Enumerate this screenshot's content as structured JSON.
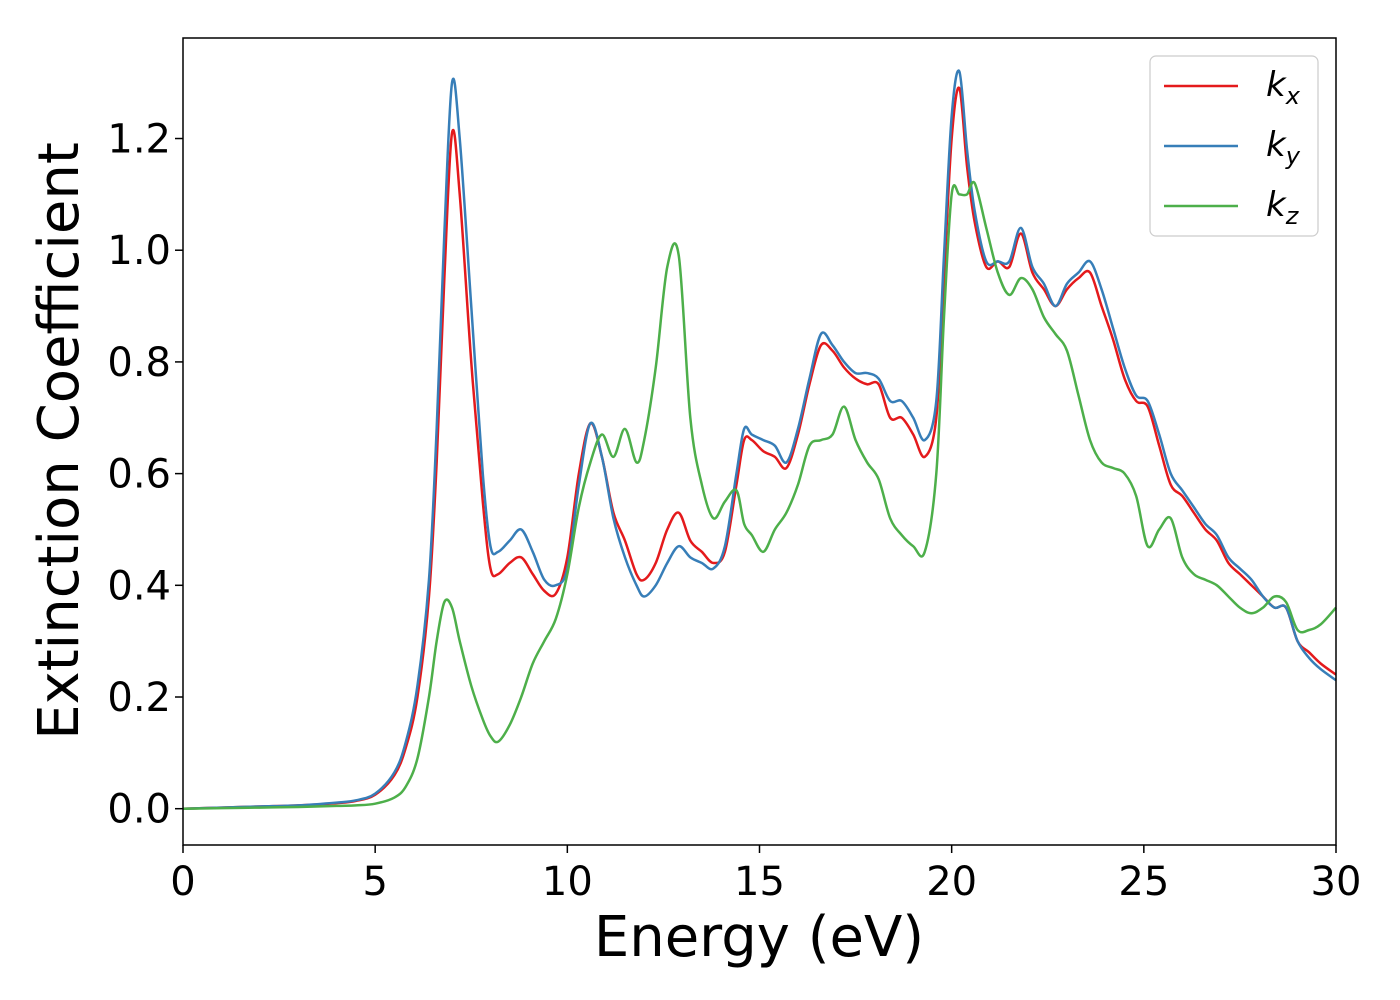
{
  "chart_data": {
    "type": "line",
    "title": "",
    "xlabel": "Energy (eV)",
    "ylabel": "Extinction Coefficient",
    "xlim": [
      0,
      30
    ],
    "ylim": [
      -0.065,
      1.38
    ],
    "xticks": [
      0,
      5,
      10,
      15,
      20,
      25,
      30
    ],
    "xtick_labels": [
      "0",
      "5",
      "10",
      "15",
      "20",
      "25",
      "30"
    ],
    "yticks": [
      0.0,
      0.2,
      0.4,
      0.6,
      0.8,
      1.0,
      1.2
    ],
    "ytick_labels": [
      "0.0",
      "0.2",
      "0.4",
      "0.6",
      "0.8",
      "1.0",
      "1.2"
    ],
    "grid": false,
    "legend_position": "top-right",
    "series": [
      {
        "name": "k_x",
        "label_main": "k",
        "label_sub": "x",
        "color": "#e41a1c",
        "x": [
          0,
          1,
          2,
          3,
          4,
          4.5,
          5,
          5.5,
          5.8,
          6.1,
          6.4,
          6.6,
          6.8,
          7.0,
          7.2,
          7.5,
          7.8,
          8.0,
          8.2,
          8.5,
          8.8,
          9.1,
          9.4,
          9.7,
          10.0,
          10.3,
          10.6,
          10.9,
          11.2,
          11.5,
          11.8,
          12.0,
          12.3,
          12.6,
          12.9,
          13.2,
          13.5,
          13.8,
          14.1,
          14.4,
          14.6,
          14.8,
          15.1,
          15.4,
          15.7,
          16.0,
          16.3,
          16.6,
          16.9,
          17.2,
          17.5,
          17.8,
          18.1,
          18.4,
          18.7,
          19.0,
          19.3,
          19.6,
          19.8,
          20.0,
          20.2,
          20.4,
          20.6,
          20.9,
          21.2,
          21.5,
          21.8,
          22.1,
          22.4,
          22.7,
          23.0,
          23.3,
          23.6,
          23.9,
          24.2,
          24.5,
          24.8,
          25.1,
          25.4,
          25.7,
          26.0,
          26.3,
          26.6,
          26.9,
          27.2,
          27.5,
          27.8,
          28.1,
          28.4,
          28.7,
          29.0,
          29.3,
          29.6,
          30.0
        ],
        "y": [
          0.0,
          0.002,
          0.004,
          0.006,
          0.01,
          0.014,
          0.025,
          0.06,
          0.11,
          0.2,
          0.38,
          0.62,
          0.95,
          1.21,
          1.1,
          0.8,
          0.55,
          0.43,
          0.42,
          0.44,
          0.45,
          0.42,
          0.39,
          0.385,
          0.45,
          0.6,
          0.69,
          0.63,
          0.53,
          0.48,
          0.42,
          0.41,
          0.44,
          0.5,
          0.53,
          0.48,
          0.46,
          0.44,
          0.46,
          0.58,
          0.66,
          0.66,
          0.64,
          0.63,
          0.61,
          0.67,
          0.76,
          0.83,
          0.82,
          0.79,
          0.77,
          0.76,
          0.76,
          0.7,
          0.7,
          0.67,
          0.63,
          0.7,
          0.95,
          1.2,
          1.29,
          1.15,
          1.05,
          0.97,
          0.98,
          0.97,
          1.03,
          0.96,
          0.93,
          0.9,
          0.93,
          0.95,
          0.96,
          0.9,
          0.84,
          0.77,
          0.73,
          0.72,
          0.65,
          0.58,
          0.56,
          0.53,
          0.5,
          0.48,
          0.44,
          0.42,
          0.4,
          0.38,
          0.36,
          0.36,
          0.3,
          0.28,
          0.26,
          0.24
        ]
      },
      {
        "name": "k_y",
        "label_main": "k",
        "label_sub": "y",
        "color": "#377eb8",
        "x": [
          0,
          1,
          2,
          3,
          4,
          4.5,
          5,
          5.5,
          5.8,
          6.1,
          6.4,
          6.6,
          6.8,
          7.0,
          7.2,
          7.5,
          7.8,
          8.0,
          8.2,
          8.5,
          8.8,
          9.1,
          9.4,
          9.7,
          10.0,
          10.3,
          10.6,
          10.9,
          11.2,
          11.5,
          11.8,
          12.0,
          12.3,
          12.6,
          12.9,
          13.2,
          13.5,
          13.8,
          14.1,
          14.4,
          14.6,
          14.8,
          15.1,
          15.4,
          15.7,
          16.0,
          16.3,
          16.6,
          16.9,
          17.2,
          17.5,
          17.8,
          18.1,
          18.4,
          18.7,
          19.0,
          19.3,
          19.6,
          19.8,
          20.0,
          20.2,
          20.4,
          20.6,
          20.9,
          21.2,
          21.5,
          21.8,
          22.1,
          22.4,
          22.7,
          23.0,
          23.3,
          23.6,
          23.9,
          24.2,
          24.5,
          24.8,
          25.1,
          25.4,
          25.7,
          26.0,
          26.3,
          26.6,
          26.9,
          27.2,
          27.5,
          27.8,
          28.1,
          28.4,
          28.7,
          29.0,
          29.3,
          29.6,
          30.0
        ],
        "y": [
          0.0,
          0.002,
          0.004,
          0.006,
          0.011,
          0.015,
          0.027,
          0.065,
          0.12,
          0.22,
          0.41,
          0.68,
          1.03,
          1.3,
          1.2,
          0.9,
          0.6,
          0.47,
          0.46,
          0.48,
          0.5,
          0.46,
          0.41,
          0.4,
          0.43,
          0.58,
          0.69,
          0.63,
          0.52,
          0.45,
          0.4,
          0.38,
          0.4,
          0.44,
          0.47,
          0.45,
          0.44,
          0.43,
          0.47,
          0.6,
          0.68,
          0.67,
          0.66,
          0.65,
          0.62,
          0.68,
          0.77,
          0.85,
          0.83,
          0.8,
          0.78,
          0.78,
          0.77,
          0.73,
          0.73,
          0.7,
          0.66,
          0.73,
          0.99,
          1.24,
          1.32,
          1.18,
          1.07,
          0.98,
          0.98,
          0.98,
          1.04,
          0.97,
          0.94,
          0.9,
          0.94,
          0.96,
          0.98,
          0.93,
          0.86,
          0.79,
          0.74,
          0.73,
          0.67,
          0.6,
          0.57,
          0.54,
          0.51,
          0.49,
          0.45,
          0.43,
          0.41,
          0.38,
          0.36,
          0.36,
          0.3,
          0.27,
          0.25,
          0.23
        ]
      },
      {
        "name": "k_z",
        "label_main": "k",
        "label_sub": "z",
        "color": "#4daf4a",
        "x": [
          0,
          1,
          2,
          3,
          4,
          4.5,
          5,
          5.5,
          5.8,
          6.1,
          6.4,
          6.6,
          6.8,
          7.0,
          7.2,
          7.5,
          7.8,
          8.0,
          8.2,
          8.5,
          8.8,
          9.1,
          9.4,
          9.7,
          10.0,
          10.3,
          10.6,
          10.9,
          11.2,
          11.5,
          11.8,
          12.0,
          12.3,
          12.6,
          12.9,
          13.2,
          13.5,
          13.8,
          14.1,
          14.4,
          14.6,
          14.8,
          15.1,
          15.4,
          15.7,
          16.0,
          16.3,
          16.6,
          16.9,
          17.2,
          17.5,
          17.8,
          18.1,
          18.4,
          18.7,
          19.0,
          19.3,
          19.6,
          19.8,
          20.0,
          20.2,
          20.4,
          20.6,
          20.9,
          21.2,
          21.5,
          21.8,
          22.1,
          22.4,
          22.7,
          23.0,
          23.3,
          23.6,
          23.9,
          24.2,
          24.5,
          24.8,
          25.1,
          25.4,
          25.7,
          26.0,
          26.3,
          26.6,
          26.9,
          27.2,
          27.5,
          27.8,
          28.1,
          28.4,
          28.7,
          29.0,
          29.3,
          29.6,
          30.0
        ],
        "y": [
          0.0,
          0.001,
          0.002,
          0.003,
          0.005,
          0.006,
          0.009,
          0.02,
          0.04,
          0.09,
          0.2,
          0.3,
          0.37,
          0.36,
          0.3,
          0.22,
          0.16,
          0.13,
          0.12,
          0.15,
          0.2,
          0.26,
          0.3,
          0.34,
          0.42,
          0.54,
          0.62,
          0.67,
          0.63,
          0.68,
          0.62,
          0.66,
          0.79,
          0.97,
          0.99,
          0.7,
          0.58,
          0.52,
          0.55,
          0.57,
          0.51,
          0.49,
          0.46,
          0.5,
          0.53,
          0.58,
          0.65,
          0.66,
          0.67,
          0.72,
          0.66,
          0.62,
          0.59,
          0.52,
          0.49,
          0.47,
          0.46,
          0.6,
          0.88,
          1.1,
          1.1,
          1.1,
          1.12,
          1.04,
          0.96,
          0.92,
          0.95,
          0.93,
          0.88,
          0.85,
          0.82,
          0.74,
          0.66,
          0.62,
          0.61,
          0.6,
          0.56,
          0.47,
          0.5,
          0.52,
          0.45,
          0.42,
          0.41,
          0.4,
          0.38,
          0.36,
          0.35,
          0.36,
          0.38,
          0.37,
          0.32,
          0.32,
          0.33,
          0.36
        ]
      }
    ]
  }
}
